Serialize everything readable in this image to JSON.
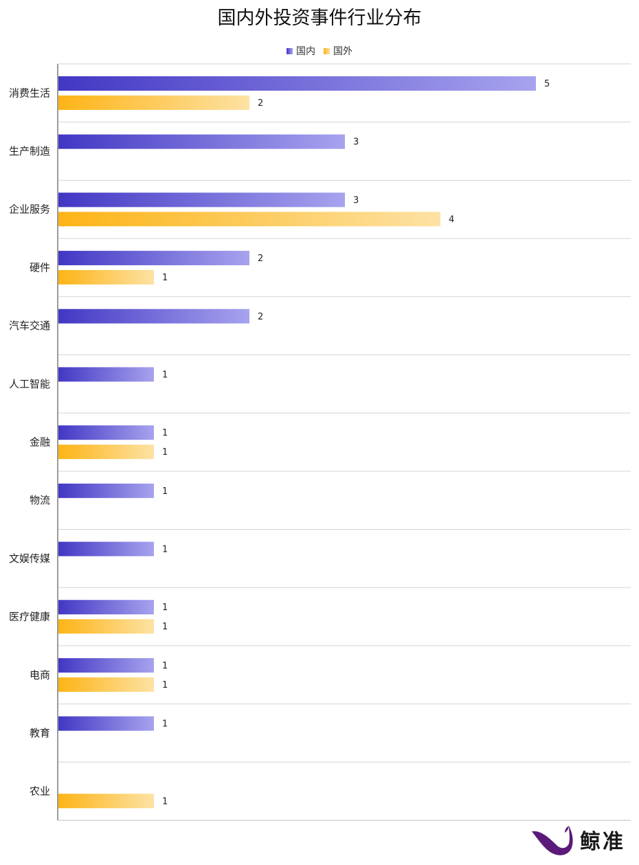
{
  "chart_data": {
    "type": "bar",
    "orientation": "horizontal",
    "title": "国内外投资事件行业分布",
    "categories": [
      "消费生活",
      "生产制造",
      "企业服务",
      "硬件",
      "汽车交通",
      "人工智能",
      "金融",
      "物流",
      "文娱传媒",
      "医疗健康",
      "电商",
      "教育",
      "农业"
    ],
    "series": [
      {
        "name": "国内",
        "values": [
          5,
          3,
          3,
          2,
          2,
          1,
          1,
          1,
          1,
          1,
          1,
          1,
          null
        ],
        "color": "#4237c4",
        "color_end": "#a7a3ee"
      },
      {
        "name": "国外",
        "values": [
          2,
          null,
          4,
          1,
          null,
          null,
          1,
          null,
          null,
          1,
          1,
          null,
          1
        ],
        "color": "#fdb416",
        "color_end": "#fde2a4"
      }
    ],
    "xlim": [
      0,
      6
    ],
    "grid": true,
    "legend_position": "top-center",
    "show_data_labels": true
  },
  "watermark": {
    "text": "鲸准",
    "icon": "whale-logo-icon",
    "color": "#5b1a7a"
  }
}
